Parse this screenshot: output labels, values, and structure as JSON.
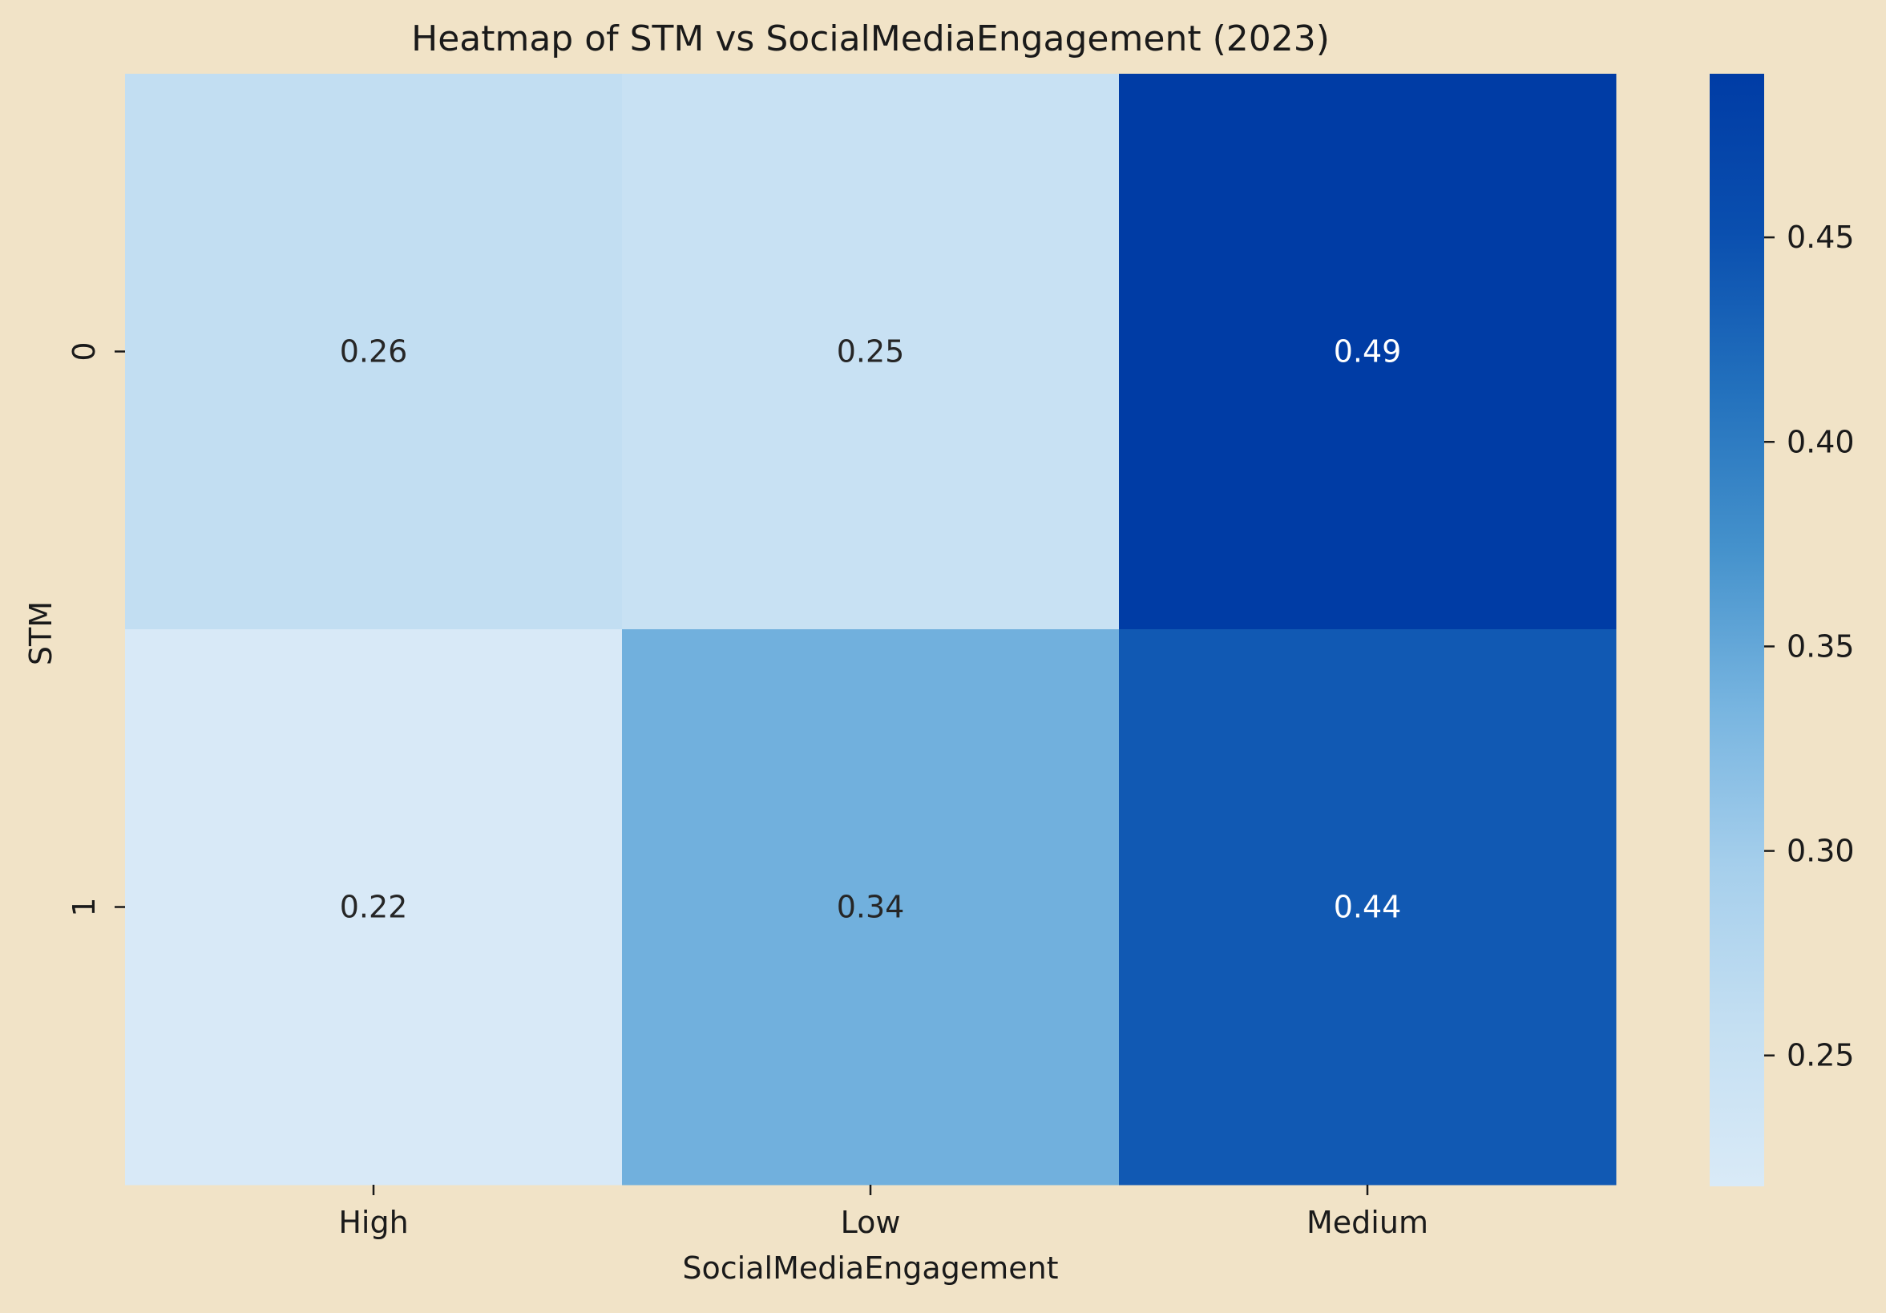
{
  "chart_data": {
    "type": "heatmap",
    "title": "Heatmap of STM vs SocialMediaEngagement (2023)",
    "xlabel": "SocialMediaEngagement",
    "ylabel": "STM",
    "x_categories": [
      "High",
      "Low",
      "Medium"
    ],
    "y_categories": [
      "0",
      "1"
    ],
    "values": [
      [
        0.26,
        0.25,
        0.49
      ],
      [
        0.22,
        0.34,
        0.44
      ]
    ],
    "value_labels": [
      [
        "0.26",
        "0.25",
        "0.49"
      ],
      [
        "0.22",
        "0.34",
        "0.44"
      ]
    ],
    "colorbar": {
      "min": 0.218,
      "max": 0.49,
      "ticks": [
        0.25,
        0.3,
        0.35,
        0.4,
        0.45
      ],
      "tick_labels": [
        "0.25",
        "0.30",
        "0.35",
        "0.40",
        "0.45"
      ],
      "colors": [
        "#d9eaf7",
        "#c4dff2",
        "#a6cfec",
        "#78b5e0",
        "#4592cc",
        "#2371bd",
        "#0a4faf",
        "#003ca5"
      ]
    },
    "grid": false,
    "legend": "colorbar-right"
  },
  "colors": {
    "background": "#f1e3c7",
    "text": "#1a1a1a",
    "annotation_dark": "#262626",
    "annotation_light": "#ffffff"
  }
}
